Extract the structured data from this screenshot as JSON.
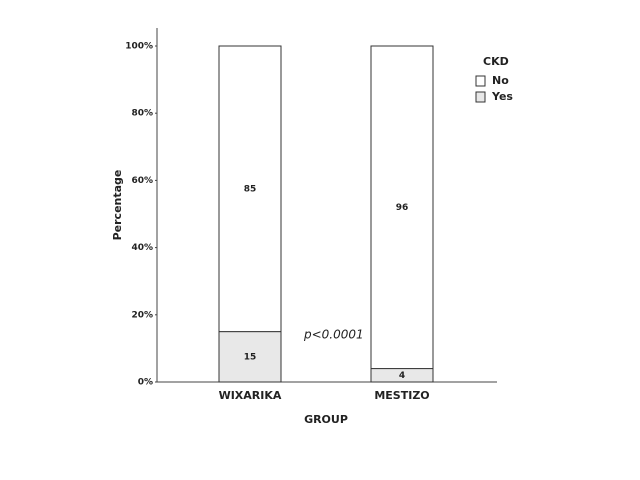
{
  "chart_data": {
    "type": "stacked_bar",
    "x_label": "GROUP",
    "y_label": "Percentage",
    "categories": [
      "WIXARIKA",
      "MESTIZO"
    ],
    "series": [
      {
        "name": "Yes",
        "color": "#e8e8e8",
        "values": [
          15,
          4
        ]
      },
      {
        "name": "No",
        "color": "#ffffff",
        "values": [
          85,
          96
        ]
      }
    ],
    "ylim": [
      0,
      100
    ],
    "yticks": [
      {
        "value": 0,
        "label": "0%"
      },
      {
        "value": 20,
        "label": "20%"
      },
      {
        "value": 40,
        "label": "40%"
      },
      {
        "value": 60,
        "label": "60%"
      },
      {
        "value": 80,
        "label": "80%"
      },
      {
        "value": 100,
        "label": "100%"
      }
    ],
    "legend_title": "CKD",
    "legend_position": "upper right",
    "annotation": "p<0.0001"
  }
}
